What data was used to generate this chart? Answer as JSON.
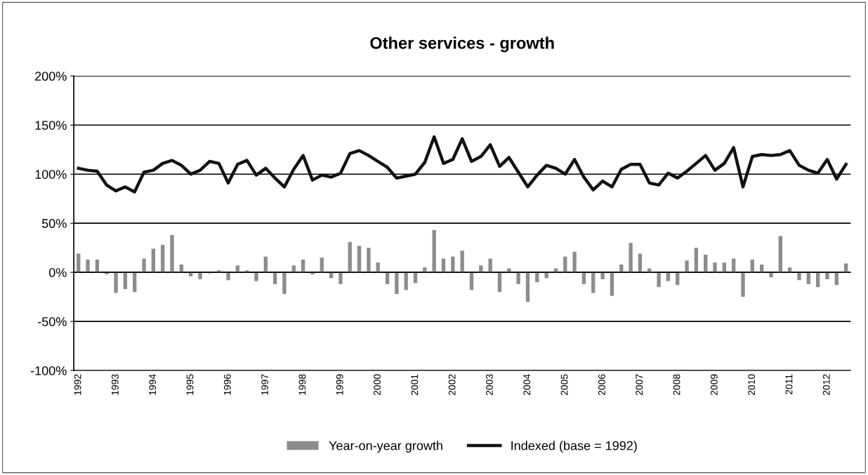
{
  "chart_data": {
    "type": "bar",
    "title": "Other services - growth",
    "categories": [
      "1992",
      null,
      null,
      null,
      "1993",
      null,
      null,
      null,
      "1994",
      null,
      null,
      null,
      "1995",
      null,
      null,
      null,
      "1996",
      null,
      null,
      null,
      "1997",
      null,
      null,
      null,
      "1998",
      null,
      null,
      null,
      "1999",
      null,
      null,
      null,
      "2000",
      null,
      null,
      null,
      "2001",
      null,
      null,
      null,
      "2002",
      null,
      null,
      null,
      "2003",
      null,
      null,
      null,
      "2004",
      null,
      null,
      null,
      "2005",
      null,
      null,
      null,
      "2006",
      null,
      null,
      null,
      "2007",
      null,
      null,
      null,
      "2008",
      null,
      null,
      null,
      "2009",
      null,
      null,
      null,
      "2010",
      null,
      null,
      null,
      "2011",
      null,
      null,
      null,
      "2012",
      null,
      null
    ],
    "series": [
      {
        "name": "Year-on-year growth",
        "color": "#8c8c8c",
        "values": [
          19,
          13,
          13,
          -2,
          -21,
          -17,
          -20,
          14,
          24,
          28,
          38,
          8,
          -4,
          -7,
          -1,
          2,
          -8,
          7,
          2,
          -9,
          16,
          -12,
          -22,
          7,
          13,
          -2,
          15,
          -6,
          -12,
          31,
          27,
          25,
          10,
          -12,
          -22,
          -18,
          -11,
          5,
          43,
          14,
          16,
          22,
          -18,
          7,
          14,
          -20,
          4,
          -12,
          -30,
          -10,
          -6,
          4,
          16,
          21,
          -12,
          -21,
          -7,
          -24,
          8,
          30,
          19,
          4,
          -15,
          -9,
          -13,
          12,
          25,
          18,
          10,
          10,
          14,
          -25,
          13,
          8,
          -5,
          37,
          5,
          -8,
          -12,
          -15,
          -7,
          -13,
          9
        ]
      },
      {
        "name": "Indexed (base = 1992)",
        "type": "line",
        "color": "#111111",
        "values": [
          106,
          104,
          103,
          89,
          83,
          87,
          82,
          102,
          104,
          111,
          114,
          109,
          100,
          104,
          113,
          111,
          91,
          110,
          114,
          99,
          106,
          96,
          87,
          105,
          119,
          94,
          99,
          97,
          101,
          121,
          124,
          119,
          113,
          107,
          96,
          98,
          100,
          112,
          138,
          111,
          115,
          136,
          113,
          118,
          130,
          108,
          117,
          102,
          87,
          99,
          109,
          106,
          100,
          115,
          97,
          84,
          93,
          87,
          105,
          110,
          110,
          91,
          89,
          101,
          96,
          103,
          111,
          119,
          104,
          111,
          127,
          87,
          118,
          120,
          119,
          120,
          124,
          109,
          104,
          101,
          115,
          95,
          110
        ]
      }
    ],
    "ylim": [
      -100,
      200
    ],
    "yticks": [
      {
        "value": -100,
        "label": "-100%"
      },
      {
        "value": -50,
        "label": "-50%"
      },
      {
        "value": 0,
        "label": "0%"
      },
      {
        "value": 50,
        "label": "50%"
      },
      {
        "value": 100,
        "label": "100%"
      },
      {
        "value": 150,
        "label": "150%"
      },
      {
        "value": 200,
        "label": "200%"
      }
    ],
    "grid": "y",
    "legend": "bottom"
  }
}
